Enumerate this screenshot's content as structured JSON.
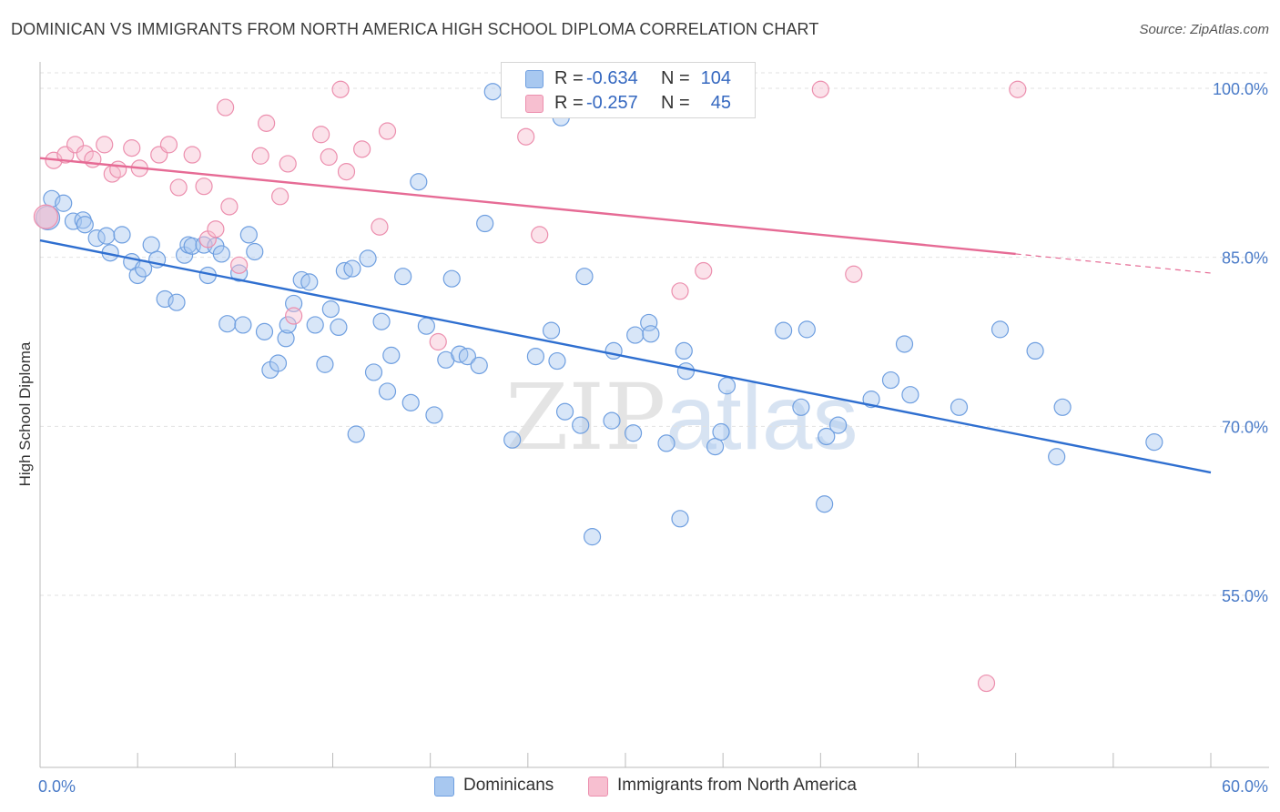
{
  "title": "DOMINICAN VS IMMIGRANTS FROM NORTH AMERICA HIGH SCHOOL DIPLOMA CORRELATION CHART",
  "source": "Source: ZipAtlas.com",
  "watermark": {
    "zip": "ZIP",
    "atlas": "atlas"
  },
  "stats": [
    {
      "r_label": "R =",
      "r_value": "-0.634",
      "n_label": "N =",
      "n_value": "104",
      "color": "#a8c8f0",
      "border": "#6f9fe0"
    },
    {
      "r_label": "R =",
      "r_value": "-0.257",
      "n_label": "N =",
      "n_value": "45",
      "color": "#f7bfd0",
      "border": "#ec8fae"
    }
  ],
  "legend": [
    {
      "label": "Dominicans",
      "color": "#a8c8f0",
      "border": "#6f9fe0"
    },
    {
      "label": "Immigrants from North America",
      "color": "#f7bfd0",
      "border": "#ec8fae"
    }
  ],
  "chart_data": {
    "type": "scatter",
    "title": "DOMINICAN VS IMMIGRANTS FROM NORTH AMERICA HIGH SCHOOL DIPLOMA CORRELATION CHART",
    "xlabel": "",
    "ylabel": "High School Diploma",
    "xlim": [
      0,
      60
    ],
    "ylim": [
      40,
      101
    ],
    "x_tick_labels": [
      {
        "value": 0,
        "label": "0.0%"
      },
      {
        "value": 60,
        "label": "60.0%"
      }
    ],
    "y_tick_labels": [
      {
        "value": 100,
        "label": "100.0%"
      },
      {
        "value": 85,
        "label": "85.0%"
      },
      {
        "value": 70,
        "label": "70.0%"
      },
      {
        "value": 55,
        "label": "55.0%"
      }
    ],
    "grid": true,
    "legend_position": "bottom",
    "series": [
      {
        "name": "Dominicans",
        "color": "#6f9fe0",
        "fill": "#a8c8f0",
        "trend": {
          "x": [
            0,
            60
          ],
          "y": [
            86.5,
            65.9
          ],
          "dash_from": null
        },
        "points": [
          [
            0.4,
            88.5
          ],
          [
            0.6,
            90.2
          ],
          [
            1.2,
            89.8
          ],
          [
            1.7,
            88.2
          ],
          [
            2.2,
            88.3
          ],
          [
            2.3,
            87.9
          ],
          [
            2.9,
            86.7
          ],
          [
            3.4,
            86.9
          ],
          [
            3.6,
            85.4
          ],
          [
            4.2,
            87.0
          ],
          [
            4.7,
            84.6
          ],
          [
            5.0,
            83.4
          ],
          [
            5.3,
            84.0
          ],
          [
            5.7,
            86.1
          ],
          [
            6.0,
            84.8
          ],
          [
            6.4,
            81.3
          ],
          [
            7.0,
            81.0
          ],
          [
            7.4,
            85.2
          ],
          [
            7.6,
            86.1
          ],
          [
            7.8,
            86.0
          ],
          [
            8.4,
            86.1
          ],
          [
            8.6,
            83.4
          ],
          [
            9.0,
            86.0
          ],
          [
            9.3,
            85.3
          ],
          [
            9.6,
            79.1
          ],
          [
            10.2,
            83.6
          ],
          [
            10.4,
            79.0
          ],
          [
            10.7,
            87.0
          ],
          [
            11.0,
            85.5
          ],
          [
            11.5,
            78.4
          ],
          [
            11.8,
            75.0
          ],
          [
            12.2,
            75.6
          ],
          [
            12.6,
            77.8
          ],
          [
            12.7,
            79.0
          ],
          [
            13.0,
            80.9
          ],
          [
            13.4,
            83.0
          ],
          [
            13.8,
            82.8
          ],
          [
            14.1,
            79.0
          ],
          [
            14.6,
            75.5
          ],
          [
            14.9,
            80.4
          ],
          [
            15.3,
            78.8
          ],
          [
            15.6,
            83.8
          ],
          [
            16.0,
            84.0
          ],
          [
            16.2,
            69.3
          ],
          [
            16.8,
            84.9
          ],
          [
            17.1,
            74.8
          ],
          [
            17.5,
            79.3
          ],
          [
            17.8,
            73.1
          ],
          [
            18.0,
            76.3
          ],
          [
            18.6,
            83.3
          ],
          [
            19.0,
            72.1
          ],
          [
            19.4,
            91.7
          ],
          [
            19.8,
            78.9
          ],
          [
            20.2,
            71.0
          ],
          [
            20.8,
            75.9
          ],
          [
            21.1,
            83.1
          ],
          [
            21.5,
            76.4
          ],
          [
            21.9,
            76.2
          ],
          [
            22.5,
            75.4
          ],
          [
            22.8,
            88.0
          ],
          [
            23.2,
            99.7
          ],
          [
            24.2,
            68.8
          ],
          [
            24.4,
            99.7
          ],
          [
            25.4,
            76.2
          ],
          [
            26.2,
            78.5
          ],
          [
            26.5,
            75.8
          ],
          [
            26.7,
            97.4
          ],
          [
            26.9,
            71.3
          ],
          [
            27.7,
            70.1
          ],
          [
            27.9,
            83.3
          ],
          [
            28.3,
            60.2
          ],
          [
            29.3,
            70.5
          ],
          [
            29.4,
            76.7
          ],
          [
            30.4,
            69.4
          ],
          [
            30.5,
            78.1
          ],
          [
            31.2,
            79.2
          ],
          [
            31.3,
            78.2
          ],
          [
            32.1,
            68.5
          ],
          [
            32.8,
            61.8
          ],
          [
            33.0,
            76.7
          ],
          [
            33.1,
            74.9
          ],
          [
            34.6,
            68.2
          ],
          [
            34.9,
            69.5
          ],
          [
            35.2,
            73.6
          ],
          [
            38.1,
            78.5
          ],
          [
            39.0,
            71.7
          ],
          [
            39.3,
            78.6
          ],
          [
            40.2,
            63.1
          ],
          [
            40.3,
            69.1
          ],
          [
            40.9,
            70.1
          ],
          [
            42.6,
            72.4
          ],
          [
            43.6,
            74.1
          ],
          [
            44.3,
            77.3
          ],
          [
            44.6,
            72.8
          ],
          [
            47.1,
            71.7
          ],
          [
            49.2,
            78.6
          ],
          [
            51.0,
            76.7
          ],
          [
            52.1,
            67.3
          ],
          [
            52.4,
            71.7
          ],
          [
            57.1,
            68.6
          ]
        ]
      },
      {
        "name": "Immigrants from North America",
        "color": "#ec8fae",
        "fill": "#f7bfd0",
        "trend": {
          "x": [
            0,
            50.0,
            60
          ],
          "y": [
            93.8,
            85.3,
            83.6
          ],
          "dash_from": 50.0
        },
        "points": [
          [
            0.3,
            88.6
          ],
          [
            0.7,
            93.6
          ],
          [
            1.3,
            94.1
          ],
          [
            1.8,
            95.0
          ],
          [
            2.3,
            94.2
          ],
          [
            2.7,
            93.7
          ],
          [
            3.3,
            95.0
          ],
          [
            3.7,
            92.4
          ],
          [
            4.0,
            92.8
          ],
          [
            4.7,
            94.7
          ],
          [
            5.1,
            92.9
          ],
          [
            6.1,
            94.1
          ],
          [
            6.6,
            95.0
          ],
          [
            7.1,
            91.2
          ],
          [
            7.8,
            94.1
          ],
          [
            8.4,
            91.3
          ],
          [
            8.6,
            86.6
          ],
          [
            9.0,
            87.5
          ],
          [
            9.5,
            98.3
          ],
          [
            9.7,
            89.5
          ],
          [
            10.2,
            84.3
          ],
          [
            11.3,
            94.0
          ],
          [
            11.6,
            96.9
          ],
          [
            12.3,
            90.4
          ],
          [
            12.7,
            93.3
          ],
          [
            13.0,
            79.8
          ],
          [
            14.4,
            95.9
          ],
          [
            14.8,
            93.9
          ],
          [
            15.4,
            99.9
          ],
          [
            15.7,
            92.6
          ],
          [
            16.5,
            94.6
          ],
          [
            17.4,
            87.7
          ],
          [
            17.8,
            96.2
          ],
          [
            20.4,
            77.5
          ],
          [
            24.9,
            95.7
          ],
          [
            25.6,
            87.0
          ],
          [
            28.2,
            99.7
          ],
          [
            28.5,
            99.7
          ],
          [
            32.5,
            99.7
          ],
          [
            32.8,
            82.0
          ],
          [
            33.2,
            99.7
          ],
          [
            34.0,
            83.8
          ],
          [
            40.0,
            99.9
          ],
          [
            41.7,
            83.5
          ],
          [
            48.5,
            47.2
          ],
          [
            50.1,
            99.9
          ]
        ]
      }
    ]
  }
}
